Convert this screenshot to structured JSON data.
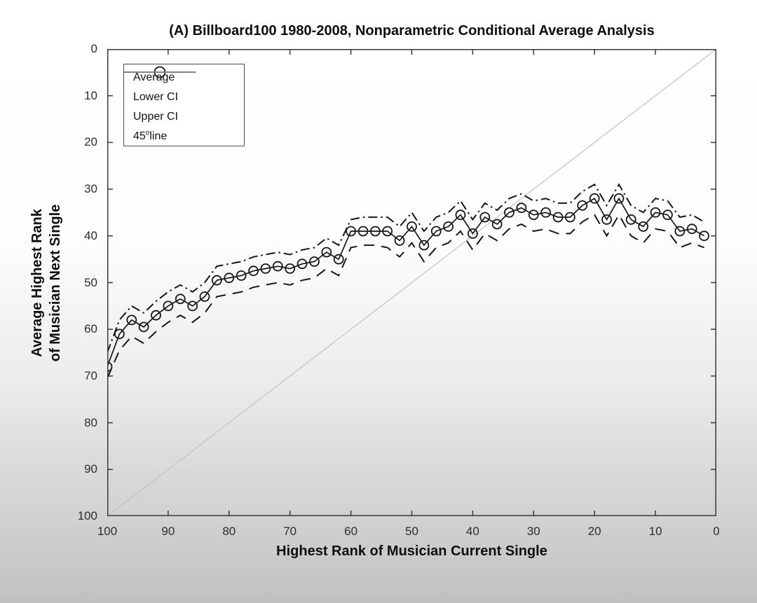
{
  "figure": {
    "title": "(A) Billboard100 1980-2008, Nonparametric Conditional Average Analysis",
    "xlabel": "Highest Rank of Musician Current Single",
    "ylabel_line1": "Average Highest Rank",
    "ylabel_line2": "of Musician Next Single"
  },
  "legend": {
    "items": [
      {
        "key": "average",
        "label": "Average",
        "style": "solid-marker"
      },
      {
        "key": "lower-ci",
        "label": "Lower CI",
        "style": "dashed"
      },
      {
        "key": "upper-ci",
        "label": "Upper CI",
        "style": "dashdot"
      },
      {
        "key": "line-45",
        "label": "45°line",
        "pre": "45",
        "sup": "o",
        "post": "line",
        "style": "thin-gray"
      }
    ]
  },
  "chart_data": {
    "type": "line",
    "title": "(A) Billboard100 1980-2008, Nonparametric Conditional Average Analysis",
    "xlabel": "Highest Rank of Musician Current Single",
    "ylabel": "Average Highest Rank of Musician Next Single",
    "grid": false,
    "legend_position": "top-left",
    "x_axis": {
      "min": 0,
      "max": 100,
      "reversed": true,
      "ticks": [
        100,
        90,
        80,
        70,
        60,
        50,
        40,
        30,
        20,
        10,
        0
      ]
    },
    "y_axis": {
      "min": 0,
      "max": 100,
      "reversed": true,
      "ticks": [
        0,
        10,
        20,
        30,
        40,
        50,
        60,
        70,
        80,
        90,
        100
      ]
    },
    "x": [
      100,
      98,
      96,
      94,
      92,
      90,
      88,
      86,
      84,
      82,
      80,
      78,
      76,
      74,
      72,
      70,
      68,
      66,
      64,
      62,
      60,
      58,
      56,
      54,
      52,
      50,
      48,
      46,
      44,
      42,
      40,
      38,
      36,
      34,
      32,
      30,
      28,
      26,
      24,
      22,
      20,
      18,
      16,
      14,
      12,
      10,
      8,
      6,
      4,
      2
    ],
    "series": [
      {
        "name": "Average",
        "style": "solid-circle",
        "values": [
          68,
          61,
          58,
          59.5,
          57,
          55,
          53.5,
          55,
          53,
          49.5,
          49,
          48.5,
          47.5,
          47,
          46.5,
          47,
          46,
          45.5,
          43.5,
          45,
          39,
          39,
          39,
          39,
          41,
          38,
          42,
          39,
          38,
          35.5,
          39.5,
          36,
          37.5,
          35,
          34,
          35.5,
          35,
          36,
          36,
          33.5,
          32,
          36.5,
          32,
          36.5,
          38,
          35,
          35.5,
          39,
          38.5,
          40
        ]
      },
      {
        "name": "Lower CI",
        "style": "dashed",
        "values": [
          70.5,
          64.5,
          61.5,
          63,
          60.5,
          58.5,
          57,
          58.5,
          56.5,
          53,
          52.5,
          52,
          51,
          50.5,
          50,
          50.5,
          49.5,
          49,
          47,
          48.5,
          42.5,
          42,
          42,
          42.5,
          44.5,
          41.5,
          45.5,
          42.5,
          41.5,
          39,
          43,
          39.5,
          41,
          38.5,
          37.5,
          39,
          38.5,
          39.5,
          39.5,
          37,
          35.5,
          40,
          35.5,
          40,
          41.5,
          38.5,
          39,
          42.5,
          41.5,
          42.5
        ]
      },
      {
        "name": "Upper CI",
        "style": "dashdot",
        "values": [
          65,
          58,
          55,
          56.5,
          54,
          52,
          50.5,
          52,
          50,
          46.5,
          46,
          45.5,
          44.5,
          44,
          43.5,
          44,
          43,
          42.5,
          40.5,
          42,
          36.5,
          36,
          36,
          36,
          38,
          35,
          39,
          36,
          35,
          32.5,
          36.5,
          33,
          34.5,
          32,
          31,
          32.5,
          32,
          33,
          33,
          30.5,
          29,
          33.5,
          29,
          33.5,
          35,
          32,
          32.5,
          36,
          35.5,
          37
        ]
      },
      {
        "name": "45° line",
        "style": "reference",
        "type": "reference",
        "points": [
          [
            0,
            0
          ],
          [
            100,
            100
          ]
        ]
      }
    ],
    "colors": {
      "series": "#161616",
      "reference": "#c2c2c2",
      "axis": "#3a3a3a"
    }
  }
}
